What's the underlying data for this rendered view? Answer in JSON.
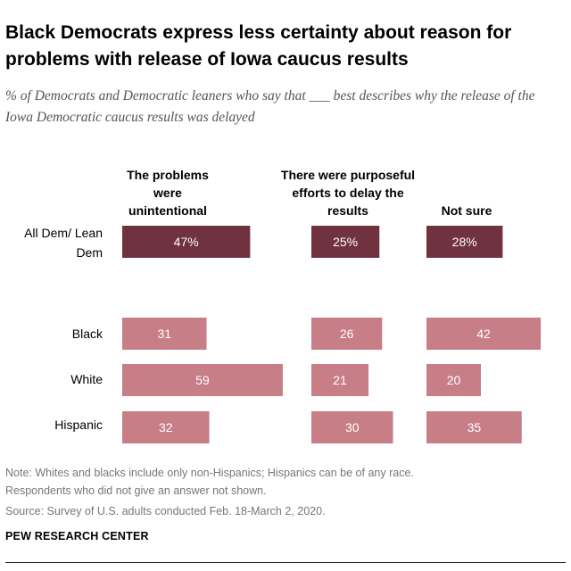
{
  "title": "Black Democrats express less certainty about reason for problems with release of Iowa caucus results",
  "subtitle": "% of Democrats and Democratic leaners who say that ___ best describes why the release of the Iowa Democratic caucus results was delayed",
  "colors": {
    "total": "#70323F",
    "group": "#C77E87",
    "label_text": "#ffffff"
  },
  "chart_data": {
    "type": "bar",
    "orientation": "horizontal",
    "value_unit": "%",
    "columns": [
      "The problems were unintentional",
      "There were purposeful efforts to delay the results",
      "Not sure"
    ],
    "rows": [
      {
        "name": "All Dem/ Lean Dem",
        "values": [
          47,
          25,
          28
        ],
        "labels": [
          "47%",
          "25%",
          "28%"
        ],
        "total": true
      },
      {
        "name": "Black",
        "values": [
          31,
          26,
          42
        ],
        "labels": [
          "31",
          "26",
          "42"
        ],
        "total": false
      },
      {
        "name": "White",
        "values": [
          59,
          21,
          20
        ],
        "labels": [
          "59",
          "21",
          "20"
        ],
        "total": false
      },
      {
        "name": "Hispanic",
        "values": [
          32,
          30,
          35
        ],
        "labels": [
          "32",
          "30",
          "35"
        ],
        "total": false
      }
    ]
  },
  "notes": {
    "note_line1": "Note: Whites and blacks include only non-Hispanics; Hispanics can be of any race.",
    "note_line2": "Respondents who did not give an answer not shown.",
    "source": "Source: Survey of U.S. adults conducted Feb. 18-March 2, 2020."
  },
  "brand": "PEW RESEARCH CENTER"
}
